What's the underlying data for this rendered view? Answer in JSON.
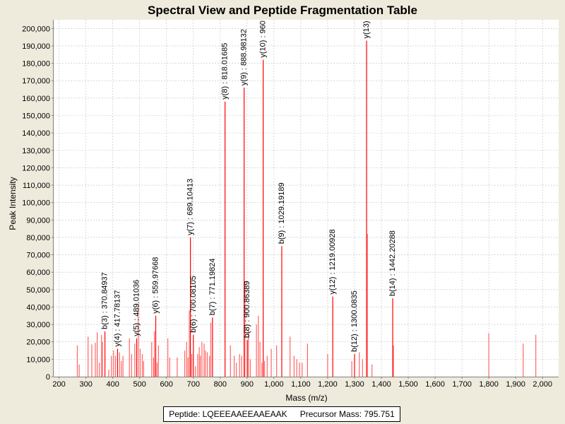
{
  "chart_data": {
    "type": "bar",
    "title": "Spectral View and Peptide Fragmentation Table",
    "xlabel": "Mass (m/z)",
    "ylabel": "Peak Intensity",
    "xlim": [
      180,
      2060
    ],
    "ylim": [
      0,
      205000
    ],
    "xticks": [
      200,
      300,
      400,
      500,
      600,
      700,
      800,
      900,
      1000,
      1100,
      1200,
      1300,
      1400,
      1500,
      1600,
      1700,
      1800,
      1900,
      2000
    ],
    "xtick_labels": [
      "200",
      "300",
      "400",
      "500",
      "600",
      "700",
      "800",
      "900",
      "1,000",
      "1,100",
      "1,200",
      "1,300",
      "1,400",
      "1,500",
      "1,600",
      "1,700",
      "1,800",
      "1,900",
      "2,000"
    ],
    "yticks": [
      0,
      10000,
      20000,
      30000,
      40000,
      50000,
      60000,
      70000,
      80000,
      90000,
      100000,
      110000,
      120000,
      130000,
      140000,
      150000,
      160000,
      170000,
      180000,
      190000,
      200000
    ],
    "ytick_labels": [
      "0",
      "10,000",
      "20,000",
      "30,000",
      "40,000",
      "50,000",
      "60,000",
      "70,000",
      "80,000",
      "90,000",
      "100,000",
      "110,000",
      "120,000",
      "130,000",
      "140,000",
      "150,000",
      "160,000",
      "170,000",
      "180,000",
      "190,000",
      "200,000"
    ],
    "peaks": [
      {
        "mz": 268,
        "intensity": 18000
      },
      {
        "mz": 275,
        "intensity": 7000
      },
      {
        "mz": 308,
        "intensity": 23000
      },
      {
        "mz": 322,
        "intensity": 18500
      },
      {
        "mz": 335,
        "intensity": 19500
      },
      {
        "mz": 342,
        "intensity": 25500
      },
      {
        "mz": 350,
        "intensity": 8000
      },
      {
        "mz": 358,
        "intensity": 24000
      },
      {
        "mz": 362,
        "intensity": 20000
      },
      {
        "mz": 370.84937,
        "intensity": 26000
      },
      {
        "mz": 385,
        "intensity": 4000
      },
      {
        "mz": 395,
        "intensity": 12000
      },
      {
        "mz": 403,
        "intensity": 15000
      },
      {
        "mz": 410,
        "intensity": 12000
      },
      {
        "mz": 417.78137,
        "intensity": 16000
      },
      {
        "mz": 425,
        "intensity": 14000
      },
      {
        "mz": 432,
        "intensity": 9000
      },
      {
        "mz": 438,
        "intensity": 12000
      },
      {
        "mz": 462,
        "intensity": 22000
      },
      {
        "mz": 470,
        "intensity": 13000
      },
      {
        "mz": 482,
        "intensity": 19000
      },
      {
        "mz": 489.01036,
        "intensity": 22000
      },
      {
        "mz": 495,
        "intensity": 42000
      },
      {
        "mz": 502,
        "intensity": 16000
      },
      {
        "mz": 510,
        "intensity": 13000
      },
      {
        "mz": 515,
        "intensity": 9000
      },
      {
        "mz": 545,
        "intensity": 20000
      },
      {
        "mz": 552,
        "intensity": 11000
      },
      {
        "mz": 555,
        "intensity": 26000
      },
      {
        "mz": 559.97668,
        "intensity": 35000
      },
      {
        "mz": 565,
        "intensity": 8000
      },
      {
        "mz": 570,
        "intensity": 18000
      },
      {
        "mz": 605,
        "intensity": 22000
      },
      {
        "mz": 612,
        "intensity": 11000
      },
      {
        "mz": 640,
        "intensity": 11000
      },
      {
        "mz": 668,
        "intensity": 15000
      },
      {
        "mz": 675,
        "intensity": 20000
      },
      {
        "mz": 680,
        "intensity": 11000
      },
      {
        "mz": 685,
        "intensity": 38000
      },
      {
        "mz": 689.10413,
        "intensity": 80000
      },
      {
        "mz": 694,
        "intensity": 13000
      },
      {
        "mz": 700.08105,
        "intensity": 24000
      },
      {
        "mz": 708,
        "intensity": 6000
      },
      {
        "mz": 716,
        "intensity": 13000
      },
      {
        "mz": 722,
        "intensity": 17000
      },
      {
        "mz": 726,
        "intensity": 12000
      },
      {
        "mz": 732,
        "intensity": 20000
      },
      {
        "mz": 740,
        "intensity": 19000
      },
      {
        "mz": 745,
        "intensity": 15000
      },
      {
        "mz": 752,
        "intensity": 14000
      },
      {
        "mz": 760,
        "intensity": 12000
      },
      {
        "mz": 765,
        "intensity": 31000
      },
      {
        "mz": 771.19824,
        "intensity": 34000
      },
      {
        "mz": 818.01685,
        "intensity": 158000
      },
      {
        "mz": 838,
        "intensity": 18000
      },
      {
        "mz": 852,
        "intensity": 12000
      },
      {
        "mz": 860,
        "intensity": 8000
      },
      {
        "mz": 872,
        "intensity": 13000
      },
      {
        "mz": 880,
        "intensity": 12000
      },
      {
        "mz": 888.98132,
        "intensity": 166000
      },
      {
        "mz": 892,
        "intensity": 55000
      },
      {
        "mz": 900.86389,
        "intensity": 21000
      },
      {
        "mz": 905,
        "intensity": 27000
      },
      {
        "mz": 912,
        "intensity": 10000
      },
      {
        "mz": 935,
        "intensity": 30000
      },
      {
        "mz": 942,
        "intensity": 35000
      },
      {
        "mz": 948,
        "intensity": 20000
      },
      {
        "mz": 955,
        "intensity": 8000
      },
      {
        "mz": 960,
        "intensity": 182000
      },
      {
        "mz": 965,
        "intensity": 9000
      },
      {
        "mz": 975,
        "intensity": 12000
      },
      {
        "mz": 990,
        "intensity": 16000
      },
      {
        "mz": 1010,
        "intensity": 18000
      },
      {
        "mz": 1029.19189,
        "intensity": 75000
      },
      {
        "mz": 1060,
        "intensity": 23000
      },
      {
        "mz": 1075,
        "intensity": 12000
      },
      {
        "mz": 1085,
        "intensity": 10000
      },
      {
        "mz": 1095,
        "intensity": 8000
      },
      {
        "mz": 1105,
        "intensity": 8000
      },
      {
        "mz": 1125,
        "intensity": 19000
      },
      {
        "mz": 1200,
        "intensity": 13000
      },
      {
        "mz": 1219.00928,
        "intensity": 46000
      },
      {
        "mz": 1290,
        "intensity": 9000
      },
      {
        "mz": 1300.0835,
        "intensity": 13000
      },
      {
        "mz": 1318,
        "intensity": 14000
      },
      {
        "mz": 1330,
        "intensity": 10000
      },
      {
        "mz": 1345,
        "intensity": 193000
      },
      {
        "mz": 1348,
        "intensity": 82000
      },
      {
        "mz": 1365,
        "intensity": 7000
      },
      {
        "mz": 1442.20288,
        "intensity": 45000
      },
      {
        "mz": 1445,
        "intensity": 18000
      },
      {
        "mz": 1800,
        "intensity": 25000
      },
      {
        "mz": 1928,
        "intensity": 19000
      },
      {
        "mz": 1975,
        "intensity": 24000
      }
    ],
    "annotations": [
      {
        "mz": 370.84937,
        "intensity": 26000,
        "label": "b(3) : 370.84937"
      },
      {
        "mz": 417.78137,
        "intensity": 16000,
        "label": "y(4) : 417.78137"
      },
      {
        "mz": 489.01036,
        "intensity": 22000,
        "label": "y(5) : 489.01036"
      },
      {
        "mz": 559.97668,
        "intensity": 35000,
        "label": "y(6) : 559.97668"
      },
      {
        "mz": 689.10413,
        "intensity": 80000,
        "label": "y(7) : 689.10413"
      },
      {
        "mz": 700.08105,
        "intensity": 24000,
        "label": "b(6) : 700.08105"
      },
      {
        "mz": 771.19824,
        "intensity": 34000,
        "label": "b(7) : 771.19824"
      },
      {
        "mz": 818.01685,
        "intensity": 158000,
        "label": "y(8) : 818.01685"
      },
      {
        "mz": 888.98132,
        "intensity": 166000,
        "label": "y(9) : 888.98132"
      },
      {
        "mz": 900.86389,
        "intensity": 21000,
        "label": "b(8) : 900.86389"
      },
      {
        "mz": 960,
        "intensity": 182000,
        "label": "y(10) : 960"
      },
      {
        "mz": 1029.19189,
        "intensity": 75000,
        "label": "b(9) : 1029.19189"
      },
      {
        "mz": 1219.00928,
        "intensity": 46000,
        "label": "y(12) : 1219.00928"
      },
      {
        "mz": 1300.0835,
        "intensity": 13000,
        "label": "b(12) : 1300.0835"
      },
      {
        "mz": 1345,
        "intensity": 193000,
        "label": "y(13)"
      },
      {
        "mz": 1442.20288,
        "intensity": 45000,
        "label": "b(14) : 1442.20288"
      }
    ],
    "grid": true,
    "colors": {
      "peak": "#ff6666",
      "annotated_peak": "#ff0000",
      "grid": "#c0c0c0",
      "plot_bg": "#ffffff",
      "page_bg": "#eeebdd"
    }
  },
  "legend": {
    "peptide_label": "Peptide: LQEEEAAEEAAEAAK",
    "precursor_label": "Precursor Mass: 795.751"
  }
}
